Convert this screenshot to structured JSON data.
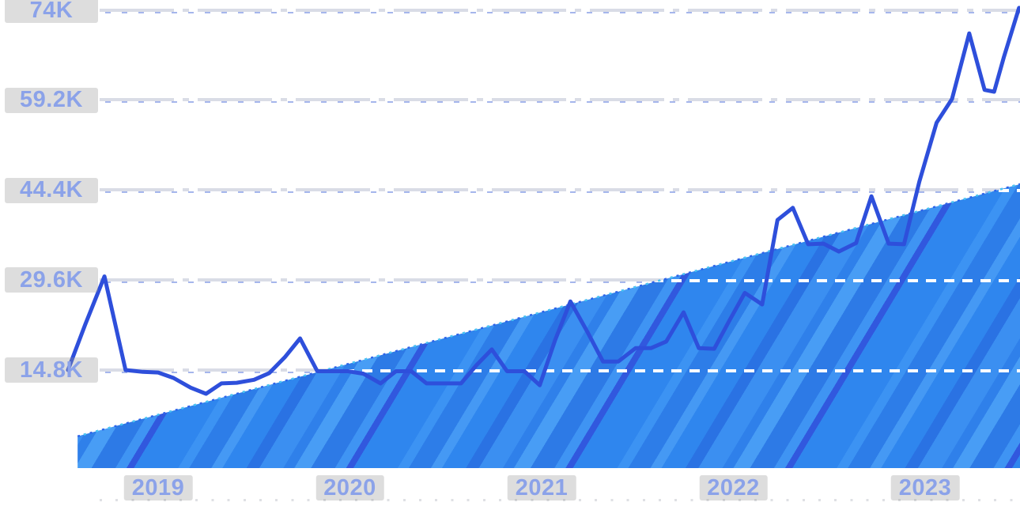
{
  "chart_data": {
    "type": "line",
    "title": "",
    "legend": "none",
    "grid": "horizontal dashed",
    "x_axis": {
      "tick_labels": [
        "2019",
        "2020",
        "2021",
        "2022",
        "2023"
      ],
      "tick_years": [
        2019,
        2020,
        2021,
        2022,
        2023
      ],
      "range_years": [
        2018.45,
        2023.5
      ]
    },
    "y_axis": {
      "tick_labels": [
        "74K",
        "59.2K",
        "44.4K",
        "29.6K",
        "14.8K"
      ],
      "tick_values": [
        74,
        59.2,
        44.4,
        29.6,
        14.8
      ],
      "unit": "thousands",
      "ylim": [
        0,
        81
      ]
    },
    "series": [
      {
        "name": "monthly-values-line",
        "type": "line",
        "color": "#2e4fdb",
        "points_year_value": [
          [
            2018.53,
            14.8
          ],
          [
            2018.62,
            22.3
          ],
          [
            2018.72,
            30.2
          ],
          [
            2018.83,
            14.8
          ],
          [
            2018.92,
            14.5
          ],
          [
            2019.0,
            14.4
          ],
          [
            2019.08,
            13.5
          ],
          [
            2019.17,
            11.9
          ],
          [
            2019.25,
            10.9
          ],
          [
            2019.33,
            12.6
          ],
          [
            2019.41,
            12.7
          ],
          [
            2019.5,
            13.2
          ],
          [
            2019.58,
            14.3
          ],
          [
            2019.66,
            16.9
          ],
          [
            2019.74,
            20.0
          ],
          [
            2019.83,
            14.6
          ],
          [
            2019.91,
            14.6
          ],
          [
            2019.99,
            14.6
          ],
          [
            2020.07,
            14.2
          ],
          [
            2020.16,
            12.6
          ],
          [
            2020.24,
            14.6
          ],
          [
            2020.32,
            14.6
          ],
          [
            2020.4,
            12.6
          ],
          [
            2020.49,
            12.6
          ],
          [
            2020.58,
            12.6
          ],
          [
            2020.66,
            15.6
          ],
          [
            2020.74,
            18.2
          ],
          [
            2020.82,
            14.6
          ],
          [
            2020.91,
            14.6
          ],
          [
            2020.99,
            12.3
          ],
          [
            2021.07,
            19.7
          ],
          [
            2021.15,
            26.1
          ],
          [
            2021.24,
            21.0
          ],
          [
            2021.32,
            16.2
          ],
          [
            2021.4,
            16.2
          ],
          [
            2021.49,
            18.4
          ],
          [
            2021.57,
            18.4
          ],
          [
            2021.65,
            19.5
          ],
          [
            2021.74,
            24.3
          ],
          [
            2021.82,
            18.4
          ],
          [
            2021.9,
            18.3
          ],
          [
            2021.98,
            23.0
          ],
          [
            2022.06,
            27.5
          ],
          [
            2022.15,
            25.6
          ],
          [
            2022.23,
            39.5
          ],
          [
            2022.31,
            41.5
          ],
          [
            2022.39,
            35.5
          ],
          [
            2022.47,
            35.6
          ],
          [
            2022.55,
            34.3
          ],
          [
            2022.64,
            35.7
          ],
          [
            2022.72,
            43.4
          ],
          [
            2022.81,
            35.6
          ],
          [
            2022.89,
            35.5
          ],
          [
            2022.97,
            45.8
          ],
          [
            2023.06,
            55.5
          ],
          [
            2023.14,
            59.4
          ],
          [
            2023.23,
            70.2
          ],
          [
            2023.31,
            60.9
          ],
          [
            2023.36,
            60.6
          ],
          [
            2023.41,
            66.2
          ],
          [
            2023.49,
            74.4
          ]
        ]
      },
      {
        "name": "trend-wedge-area",
        "type": "area",
        "color": "#318bf0",
        "stripe_colors": [
          "#2f86ee",
          "#3c93f3",
          "#2d7de8",
          "#4599f4",
          "#2a72e3",
          "#3158de"
        ],
        "edge_highlight_colors": [
          "#2e63e8",
          "#49c9f2"
        ],
        "points_year_value": [
          [
            2018.58,
            3.9
          ],
          [
            2023.5,
            45.4
          ]
        ]
      }
    ],
    "colors": {
      "background": "#ffffff",
      "grid_outside_area": "#d9dce6",
      "grid_over_area": "#ffffff",
      "tick_label_text": "#8ba2e9",
      "tick_label_chip": "rgba(148,148,150,0.32)"
    }
  }
}
